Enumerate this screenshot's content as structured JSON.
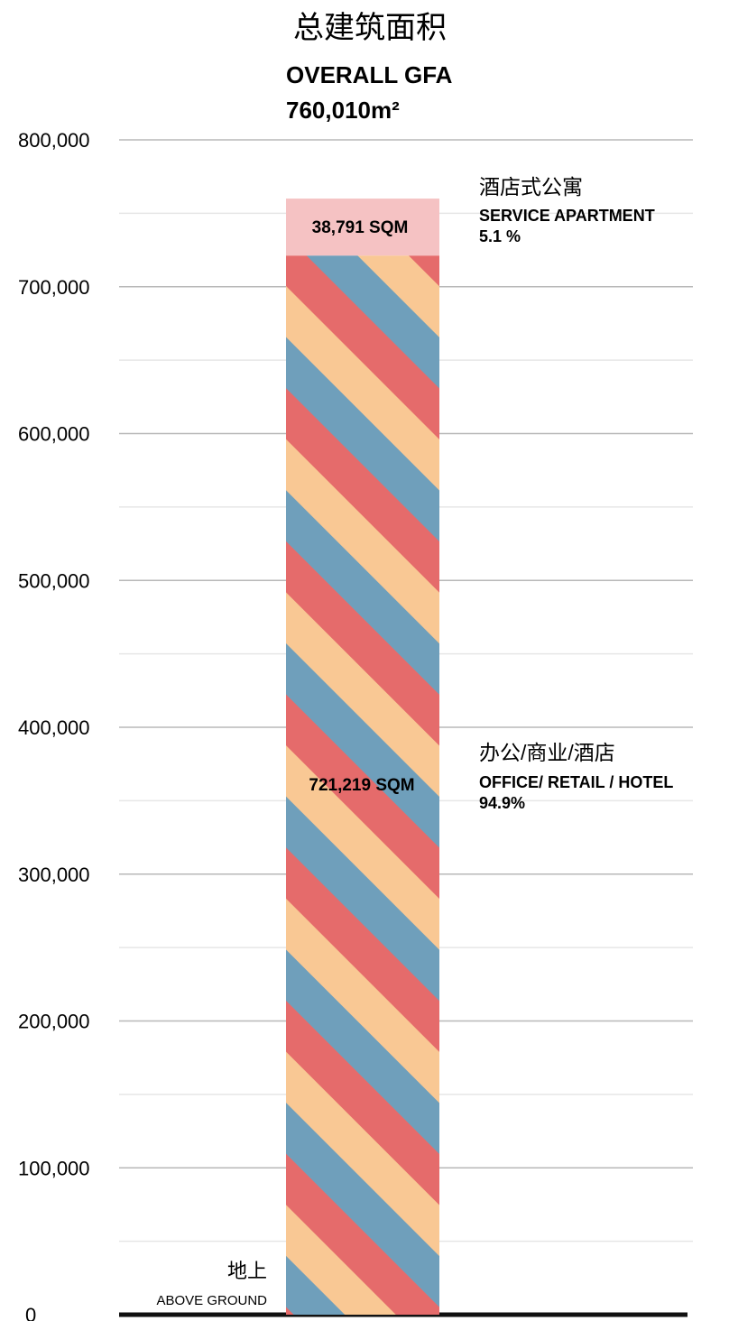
{
  "chart_data": {
    "type": "bar",
    "title_zh": "总建筑面积",
    "title_en": "OVERALL GFA",
    "total": "760,010m²",
    "category_zh": "地上",
    "category_en": "ABOVE GROUND",
    "categories": [
      "ABOVE GROUND"
    ],
    "stacked": true,
    "ylim": [
      0,
      800000
    ],
    "y_ticks": [
      0,
      100000,
      200000,
      300000,
      400000,
      500000,
      600000,
      700000,
      800000
    ],
    "y_tick_labels": [
      "0",
      "100,000",
      "200,000",
      "300,000",
      "400,000",
      "500,000",
      "600,000",
      "700,000",
      "800,000"
    ],
    "grid": true,
    "series": [
      {
        "value": 721219,
        "value_label": "721,219 SQM",
        "label_zh": "办公/商业/酒店",
        "label_en": "OFFICE/ RETAIL / HOTEL",
        "percent": "94.9%",
        "stripe_colors": [
          "#e56b6b",
          "#6f9fbb",
          "#f9c894"
        ]
      },
      {
        "value": 38791,
        "value_label": "38,791 SQM",
        "label_zh": "酒店式公寓",
        "label_en": "SERVICE APARTMENT",
        "percent": "5.1 %",
        "color": "#f5c2c3"
      }
    ]
  }
}
